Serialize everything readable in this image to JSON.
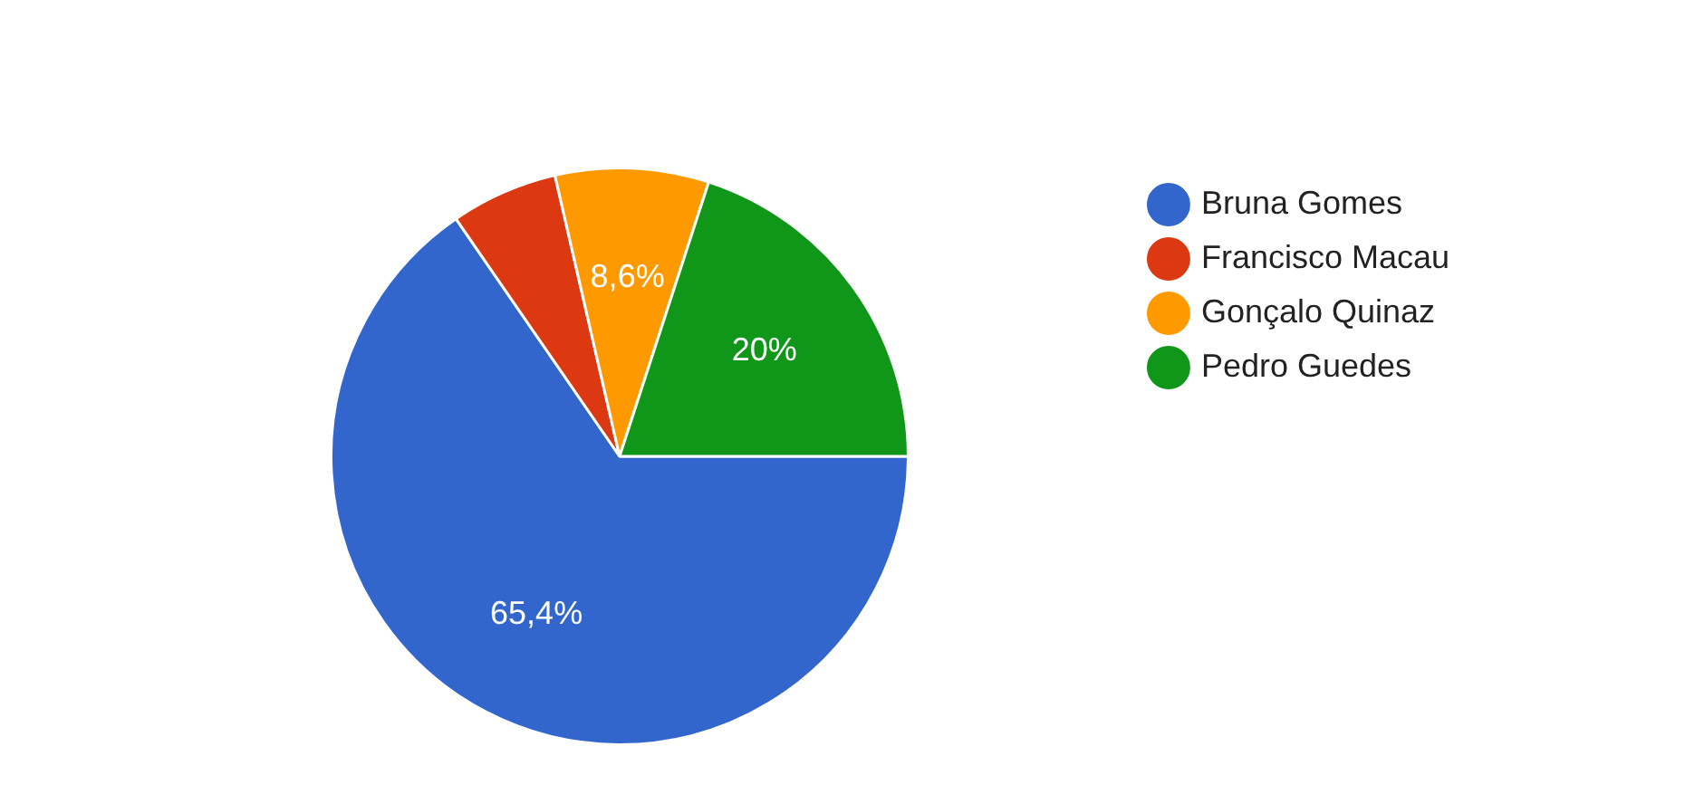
{
  "chart_data": {
    "type": "pie",
    "categories": [
      "Bruna Gomes",
      "Francisco Macau",
      "Gonçalo Quinaz",
      "Pedro Guedes"
    ],
    "values": [
      65.4,
      6,
      8.6,
      20
    ],
    "colors": [
      "#3366cc",
      "#dc3912",
      "#ff9900",
      "#109618"
    ],
    "value_labels": [
      "65,4%",
      null,
      "8,6%",
      "20%"
    ],
    "legend": "right"
  }
}
